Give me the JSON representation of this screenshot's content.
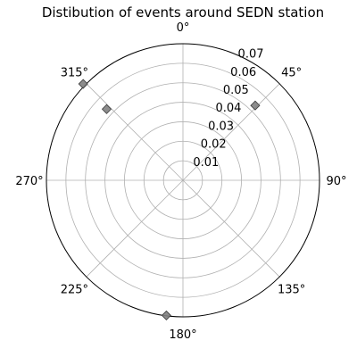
{
  "chart_data": {
    "type": "scatter",
    "projection": "polar",
    "title": "Distibution of events around SEDN station",
    "theta_zero_location": "N",
    "theta_direction": "clockwise",
    "theta_ticks": [
      0,
      45,
      90,
      135,
      180,
      225,
      270,
      315
    ],
    "theta_tick_labels": [
      "0°",
      "45°",
      "90°",
      "135°",
      "180°",
      "225°",
      "270°",
      "315°"
    ],
    "r_lim": [
      0,
      0.07
    ],
    "r_ticks": [
      0.01,
      0.02,
      0.03,
      0.04,
      0.05,
      0.06,
      0.07
    ],
    "r_tick_labels": [
      "0.01",
      "0.02",
      "0.03",
      "0.04",
      "0.05",
      "0.06",
      "0.07"
    ],
    "grid": true,
    "marker": "diamond",
    "marker_color": "#808080",
    "points": [
      {
        "theta": 44,
        "r": 0.0533
      },
      {
        "theta": 313,
        "r": 0.0535
      },
      {
        "theta": 314,
        "r": 0.0711
      },
      {
        "theta": 187,
        "r": 0.0698
      }
    ]
  }
}
